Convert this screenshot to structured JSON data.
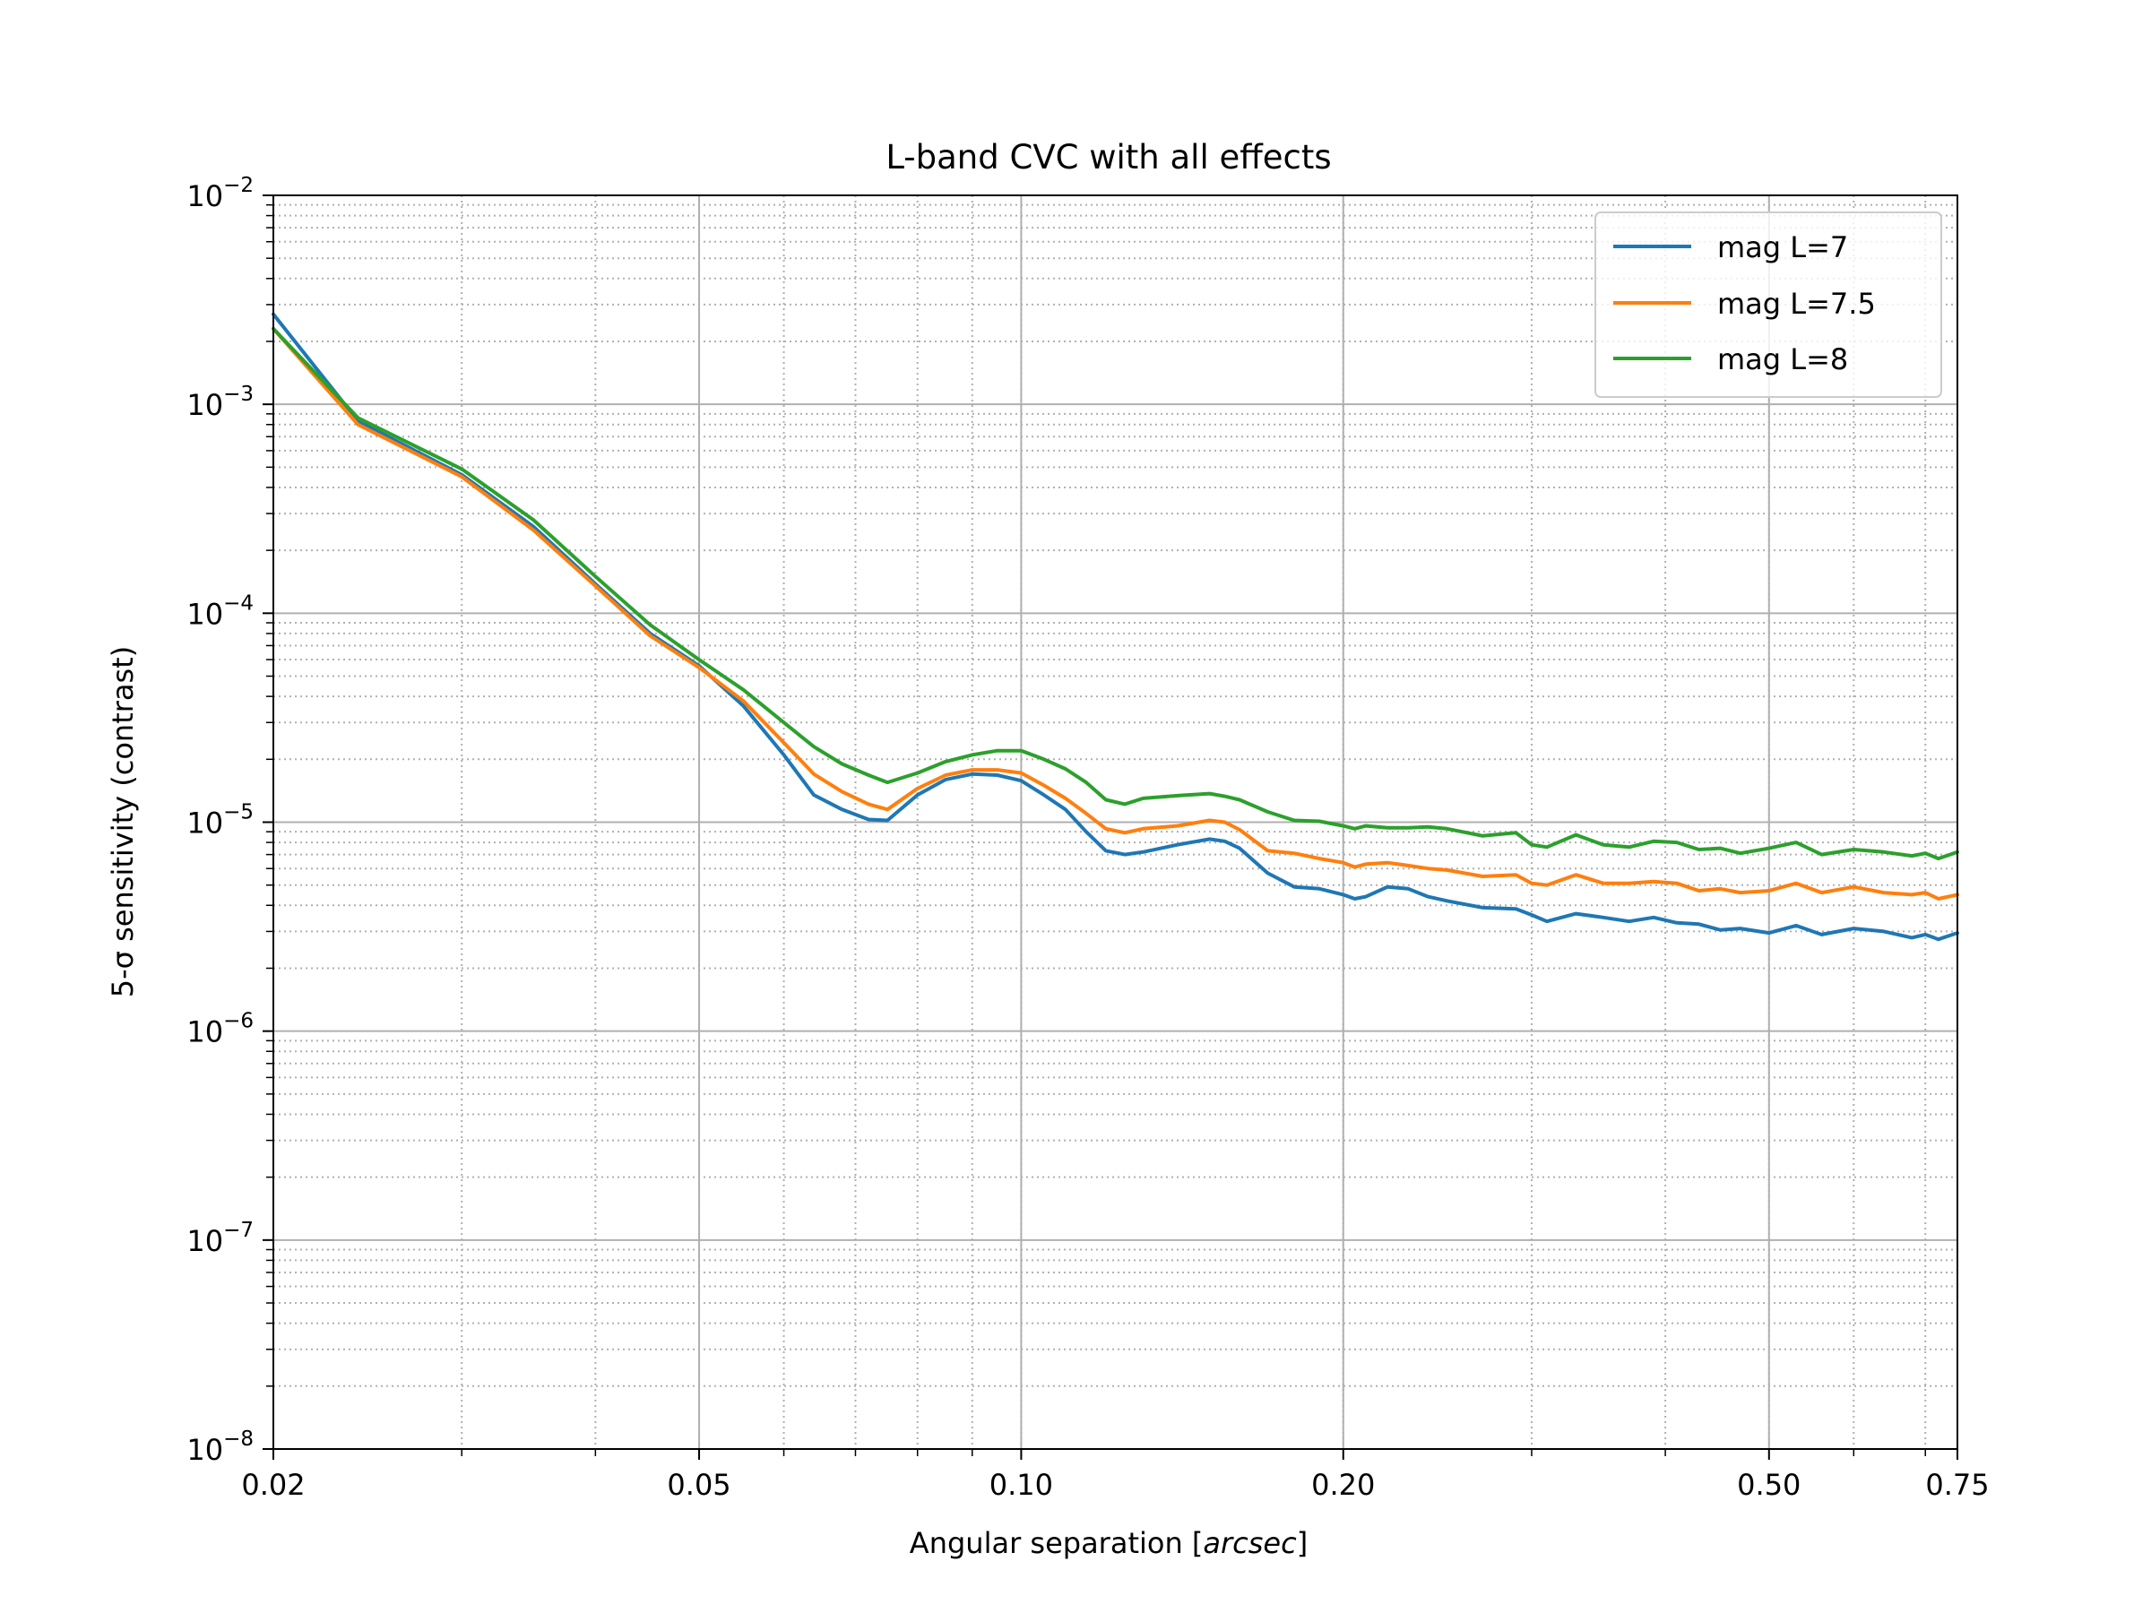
{
  "chart_data": {
    "type": "line",
    "title": "L-band CVC with all effects",
    "xlabel": "Angular separation [",
    "xlabel_italic": "arcsec",
    "xlabel_end": "]",
    "ylabel": "5-σ sensitivity (contrast)",
    "xscale": "log",
    "yscale": "log",
    "xlim": [
      0.02,
      0.75
    ],
    "ylim": [
      1e-08,
      0.01
    ],
    "xticks": [
      {
        "value": 0.02,
        "label": "0.02"
      },
      {
        "value": 0.05,
        "label": "0.05"
      },
      {
        "value": 0.1,
        "label": "0.10"
      },
      {
        "value": 0.2,
        "label": "0.20"
      },
      {
        "value": 0.5,
        "label": "0.50"
      },
      {
        "value": 0.75,
        "label": "0.75"
      }
    ],
    "yticks": [
      {
        "value": 0.01,
        "base": "10",
        "exp": "−2"
      },
      {
        "value": 0.001,
        "base": "10",
        "exp": "−3"
      },
      {
        "value": 0.0001,
        "base": "10",
        "exp": "−4"
      },
      {
        "value": 1e-05,
        "base": "10",
        "exp": "−5"
      },
      {
        "value": 1e-06,
        "base": "10",
        "exp": "−6"
      },
      {
        "value": 1e-07,
        "base": "10",
        "exp": "−7"
      },
      {
        "value": 1e-08,
        "base": "10",
        "exp": "−8"
      }
    ],
    "grid": true,
    "legend_position": "top-right",
    "series": [
      {
        "name": "mag L=7",
        "color": "#1f77b4",
        "x": [
          0.02,
          0.024,
          0.03,
          0.035,
          0.04,
          0.045,
          0.05,
          0.055,
          0.06,
          0.064,
          0.068,
          0.072,
          0.075,
          0.08,
          0.085,
          0.09,
          0.095,
          0.1,
          0.105,
          0.11,
          0.115,
          0.12,
          0.125,
          0.13,
          0.14,
          0.15,
          0.155,
          0.16,
          0.17,
          0.18,
          0.19,
          0.2,
          0.205,
          0.21,
          0.22,
          0.23,
          0.24,
          0.25,
          0.27,
          0.29,
          0.3,
          0.31,
          0.33,
          0.35,
          0.37,
          0.39,
          0.41,
          0.43,
          0.45,
          0.47,
          0.5,
          0.53,
          0.56,
          0.6,
          0.64,
          0.68,
          0.7,
          0.72,
          0.75
        ],
        "y": [
          0.0027,
          0.00083,
          0.00046,
          0.00026,
          0.000138,
          8e-05,
          5.6e-05,
          3.6e-05,
          2.1e-05,
          1.35e-05,
          1.15e-05,
          1.03e-05,
          1.02e-05,
          1.35e-05,
          1.6e-05,
          1.7e-05,
          1.68e-05,
          1.58e-05,
          1.35e-05,
          1.15e-05,
          9e-06,
          7.3e-06,
          7e-06,
          7.2e-06,
          7.8e-06,
          8.3e-06,
          8.1e-06,
          7.5e-06,
          5.7e-06,
          4.9e-06,
          4.8e-06,
          4.5e-06,
          4.3e-06,
          4.4e-06,
          4.9e-06,
          4.8e-06,
          4.4e-06,
          4.2e-06,
          3.9e-06,
          3.85e-06,
          3.6e-06,
          3.35e-06,
          3.65e-06,
          3.5e-06,
          3.35e-06,
          3.5e-06,
          3.3e-06,
          3.25e-06,
          3.05e-06,
          3.1e-06,
          2.95e-06,
          3.2e-06,
          2.9e-06,
          3.1e-06,
          3e-06,
          2.8e-06,
          2.9e-06,
          2.75e-06,
          2.95e-06
        ]
      },
      {
        "name": "mag L=7.5",
        "color": "#ff7f0e",
        "x": [
          0.02,
          0.024,
          0.03,
          0.035,
          0.04,
          0.045,
          0.05,
          0.055,
          0.06,
          0.064,
          0.068,
          0.072,
          0.075,
          0.08,
          0.085,
          0.09,
          0.095,
          0.1,
          0.105,
          0.11,
          0.115,
          0.12,
          0.125,
          0.13,
          0.14,
          0.15,
          0.155,
          0.16,
          0.17,
          0.18,
          0.19,
          0.2,
          0.205,
          0.21,
          0.22,
          0.23,
          0.24,
          0.25,
          0.27,
          0.29,
          0.3,
          0.31,
          0.33,
          0.35,
          0.37,
          0.39,
          0.41,
          0.43,
          0.45,
          0.47,
          0.5,
          0.53,
          0.56,
          0.6,
          0.64,
          0.68,
          0.7,
          0.72,
          0.75
        ],
        "y": [
          0.0023,
          0.0008,
          0.00045,
          0.00025,
          0.000135,
          7.8e-05,
          5.5e-05,
          3.8e-05,
          2.4e-05,
          1.7e-05,
          1.4e-05,
          1.22e-05,
          1.15e-05,
          1.45e-05,
          1.68e-05,
          1.78e-05,
          1.78e-05,
          1.72e-05,
          1.5e-05,
          1.3e-05,
          1.1e-05,
          9.3e-06,
          8.9e-06,
          9.3e-06,
          9.6e-06,
          1.02e-05,
          1e-05,
          9.2e-06,
          7.3e-06,
          7.1e-06,
          6.7e-06,
          6.4e-06,
          6.1e-06,
          6.3e-06,
          6.4e-06,
          6.2e-06,
          6e-06,
          5.9e-06,
          5.5e-06,
          5.6e-06,
          5.1e-06,
          5e-06,
          5.6e-06,
          5.1e-06,
          5.1e-06,
          5.2e-06,
          5.1e-06,
          4.7e-06,
          4.8e-06,
          4.6e-06,
          4.7e-06,
          5.1e-06,
          4.6e-06,
          4.9e-06,
          4.6e-06,
          4.5e-06,
          4.6e-06,
          4.3e-06,
          4.5e-06
        ]
      },
      {
        "name": "mag L=8",
        "color": "#2ca02c",
        "x": [
          0.02,
          0.024,
          0.03,
          0.035,
          0.04,
          0.045,
          0.05,
          0.055,
          0.06,
          0.064,
          0.068,
          0.072,
          0.075,
          0.08,
          0.085,
          0.09,
          0.095,
          0.1,
          0.105,
          0.11,
          0.115,
          0.12,
          0.125,
          0.13,
          0.14,
          0.15,
          0.155,
          0.16,
          0.17,
          0.18,
          0.19,
          0.2,
          0.205,
          0.21,
          0.22,
          0.23,
          0.24,
          0.25,
          0.27,
          0.29,
          0.3,
          0.31,
          0.33,
          0.35,
          0.37,
          0.39,
          0.41,
          0.43,
          0.45,
          0.47,
          0.5,
          0.53,
          0.56,
          0.6,
          0.64,
          0.68,
          0.7,
          0.72,
          0.75
        ],
        "y": [
          0.0023,
          0.00086,
          0.00049,
          0.00028,
          0.00015,
          8.8e-05,
          6e-05,
          4.3e-05,
          3e-05,
          2.3e-05,
          1.9e-05,
          1.68e-05,
          1.55e-05,
          1.72e-05,
          1.95e-05,
          2.1e-05,
          2.2e-05,
          2.2e-05,
          2e-05,
          1.8e-05,
          1.55e-05,
          1.28e-05,
          1.22e-05,
          1.3e-05,
          1.34e-05,
          1.37e-05,
          1.33e-05,
          1.28e-05,
          1.12e-05,
          1.02e-05,
          1.01e-05,
          9.6e-06,
          9.3e-06,
          9.6e-06,
          9.4e-06,
          9.4e-06,
          9.5e-06,
          9.3e-06,
          8.6e-06,
          8.9e-06,
          7.8e-06,
          7.6e-06,
          8.7e-06,
          7.8e-06,
          7.6e-06,
          8.1e-06,
          8e-06,
          7.4e-06,
          7.5e-06,
          7.1e-06,
          7.5e-06,
          8e-06,
          7e-06,
          7.4e-06,
          7.2e-06,
          6.9e-06,
          7.1e-06,
          6.7e-06,
          7.2e-06
        ]
      }
    ]
  }
}
